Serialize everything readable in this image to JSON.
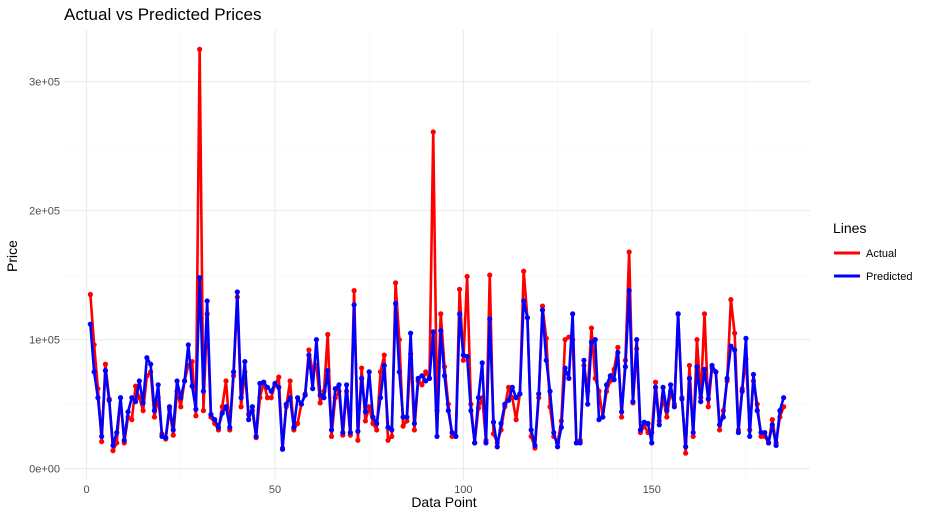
{
  "chart_data": {
    "type": "line",
    "title": "Actual vs Predicted Prices",
    "xlabel": "Data Point",
    "ylabel": "Price",
    "xlim": [
      1,
      185
    ],
    "ylim": [
      0,
      325000
    ],
    "x_ticks": [
      0,
      50,
      100,
      150
    ],
    "x_tick_labels": [
      "0",
      "50",
      "100",
      "150"
    ],
    "y_ticks": [
      0,
      100000,
      200000,
      300000
    ],
    "y_tick_labels": [
      "0e+00",
      "1e+05",
      "2e+05",
      "3e+05"
    ],
    "grid": true,
    "legend": {
      "title": "Lines",
      "position": "right"
    },
    "series": [
      {
        "name": "Actual",
        "color": "#ff0000",
        "values": [
          135000,
          96000,
          62000,
          21000,
          81000,
          54000,
          14000,
          20000,
          55000,
          20000,
          40000,
          38000,
          64000,
          55000,
          45000,
          72000,
          75000,
          40000,
          55000,
          27000,
          23000,
          46000,
          26000,
          60000,
          48000,
          68000,
          80000,
          83000,
          41000,
          325000,
          45000,
          120000,
          40000,
          35000,
          30000,
          48000,
          68000,
          30000,
          72000,
          133000,
          48000,
          75000,
          42000,
          45000,
          24000,
          55000,
          67000,
          55000,
          55000,
          65000,
          71000,
          16000,
          48000,
          68000,
          30000,
          35000,
          50000,
          58000,
          92000,
          75000,
          80000,
          51000,
          60000,
          104000,
          25000,
          55000,
          60000,
          26000,
          60000,
          26000,
          138000,
          22000,
          78000,
          37000,
          48000,
          35000,
          30000,
          75000,
          88000,
          22000,
          25000,
          144000,
          100000,
          33000,
          37000,
          89000,
          30000,
          68000,
          65000,
          75000,
          70000,
          261000,
          45000,
          120000,
          79000,
          50000,
          25000,
          25000,
          139000,
          84000,
          149000,
          50000,
          20000,
          47000,
          55000,
          22000,
          150000,
          27000,
          20000,
          30000,
          48000,
          63000,
          55000,
          38000,
          58000,
          153000,
          117000,
          25000,
          16000,
          55000,
          126000,
          101000,
          48000,
          25000,
          20000,
          37000,
          100000,
          102000,
          100000,
          20000,
          22000,
          80000,
          60000,
          109000,
          70000,
          60000,
          40000,
          60000,
          68000,
          77000,
          94000,
          40000,
          84000,
          168000,
          51000,
          93000,
          28000,
          33000,
          28000,
          28000,
          67000,
          37000,
          55000,
          40000,
          60000,
          50000,
          120000,
          55000,
          12000,
          80000,
          25000,
          100000,
          55000,
          120000,
          48000,
          78000,
          75000,
          30000,
          45000,
          68000,
          131000,
          105000,
          30000,
          62000,
          85000,
          30000,
          68000,
          50000,
          25000,
          25000,
          20000,
          38000,
          20000,
          40000,
          48000
        ]
      },
      {
        "name": "Predicted",
        "color": "#0000ff",
        "values": [
          112000,
          75000,
          55000,
          25000,
          76000,
          53000,
          18000,
          28000,
          55000,
          22000,
          44000,
          55000,
          52000,
          68000,
          51000,
          86000,
          81000,
          45000,
          65000,
          25000,
          24000,
          48000,
          30000,
          68000,
          55000,
          68000,
          96000,
          64000,
          46000,
          148000,
          60000,
          130000,
          42000,
          38000,
          32000,
          43000,
          48000,
          32000,
          75000,
          137000,
          55000,
          83000,
          38000,
          48000,
          25000,
          66000,
          67000,
          63000,
          60000,
          66000,
          63000,
          15000,
          50000,
          55000,
          32000,
          55000,
          50000,
          57000,
          88000,
          62000,
          100000,
          57000,
          55000,
          76000,
          30000,
          62000,
          65000,
          28000,
          65000,
          28000,
          127000,
          29000,
          70000,
          44000,
          75000,
          40000,
          35000,
          55000,
          80000,
          32000,
          30000,
          128000,
          75000,
          40000,
          40000,
          105000,
          35000,
          70000,
          72000,
          68000,
          70000,
          106000,
          25000,
          107000,
          72000,
          45000,
          28000,
          25000,
          120000,
          88000,
          87000,
          45000,
          20000,
          55000,
          82000,
          20000,
          116000,
          36000,
          17000,
          35000,
          50000,
          53000,
          63000,
          55000,
          58000,
          130000,
          117000,
          30000,
          18000,
          58000,
          123000,
          84000,
          60000,
          28000,
          17000,
          32000,
          78000,
          70000,
          120000,
          20000,
          20000,
          84000,
          50000,
          98000,
          100000,
          38000,
          40000,
          65000,
          72000,
          69000,
          90000,
          44000,
          79000,
          138000,
          52000,
          100000,
          30000,
          36000,
          35000,
          20000,
          63000,
          34000,
          63000,
          45000,
          65000,
          48000,
          120000,
          54000,
          17000,
          70000,
          28000,
          79000,
          52000,
          77000,
          54000,
          80000,
          75000,
          34000,
          40000,
          70000,
          95000,
          92000,
          28000,
          60000,
          101000,
          25000,
          73000,
          45000,
          28000,
          28000,
          20000,
          34000,
          18000,
          45000,
          55000
        ]
      }
    ]
  }
}
